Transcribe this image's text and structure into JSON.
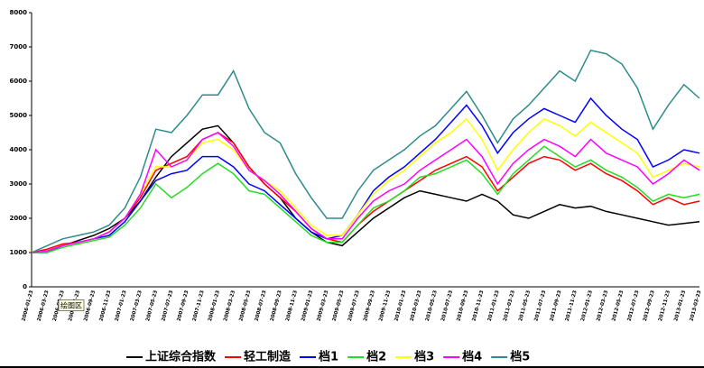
{
  "chart_data": {
    "type": "line",
    "annotation": "绘图区",
    "categories": [
      "2006-01-23",
      "2006-03-23",
      "2006-05-23",
      "2006-07-23",
      "2006-09-23",
      "2006-11-23",
      "2007-01-23",
      "2007-03-23",
      "2007-05-23",
      "2007-07-23",
      "2007-09-23",
      "2007-11-23",
      "2008-01-23",
      "2008-03-23",
      "2008-05-23",
      "2008-07-23",
      "2008-09-23",
      "2008-11-23",
      "2009-01-23",
      "2009-03-23",
      "2009-05-23",
      "2009-07-23",
      "2009-09-23",
      "2009-11-23",
      "2010-01-23",
      "2010-03-23",
      "2010-05-23",
      "2010-07-23",
      "2010-09-23",
      "2010-11-23",
      "2011-01-23",
      "2011-03-23",
      "2011-05-23",
      "2011-07-23",
      "2011-09-23",
      "2011-11-23",
      "2012-01-23",
      "2012-03-23",
      "2012-05-23",
      "2012-07-23",
      "2012-09-23",
      "2012-11-23",
      "2013-01-23",
      "2013-03-23"
    ],
    "series": [
      {
        "name": "上证综合指数",
        "color": "#000000",
        "values": [
          1000,
          1050,
          1200,
          1350,
          1500,
          1700,
          2000,
          2500,
          3200,
          3800,
          4200,
          4600,
          4700,
          4200,
          3500,
          3000,
          2600,
          2000,
          1600,
          1300,
          1200,
          1600,
          2000,
          2300,
          2600,
          2800,
          2700,
          2600,
          2500,
          2700,
          2500,
          2100,
          2000,
          2200,
          2400,
          2300,
          2350,
          2200,
          2100,
          2000,
          1900,
          1800,
          1850,
          1900
        ]
      },
      {
        "name": "轻工制造",
        "color": "#ff0000",
        "values": [
          1000,
          1100,
          1250,
          1300,
          1400,
          1600,
          2000,
          2600,
          3400,
          3600,
          3800,
          4300,
          4500,
          4200,
          3500,
          3000,
          2600,
          2200,
          1700,
          1400,
          1300,
          1800,
          2200,
          2500,
          2800,
          3100,
          3400,
          3600,
          3800,
          3500,
          2800,
          3200,
          3600,
          3800,
          3700,
          3400,
          3600,
          3300,
          3100,
          2800,
          2400,
          2600,
          2400,
          2500
        ]
      },
      {
        "name": "档1",
        "color": "#0000ff",
        "values": [
          1000,
          1000,
          1200,
          1300,
          1400,
          1500,
          1900,
          2500,
          3100,
          3300,
          3400,
          3800,
          3800,
          3500,
          3000,
          2800,
          2400,
          2000,
          1600,
          1400,
          1500,
          2100,
          2800,
          3200,
          3500,
          3900,
          4300,
          4800,
          5300,
          4700,
          3900,
          4500,
          4900,
          5200,
          5000,
          4800,
          5500,
          5000,
          4600,
          4300,
          3500,
          3700,
          4000,
          3900
        ]
      },
      {
        "name": "档2",
        "color": "#22dd22",
        "values": [
          1000,
          1000,
          1150,
          1250,
          1350,
          1450,
          1800,
          2300,
          3000,
          2600,
          2900,
          3300,
          3600,
          3300,
          2800,
          2700,
          2300,
          1900,
          1500,
          1300,
          1300,
          1800,
          2300,
          2500,
          2800,
          3200,
          3300,
          3500,
          3700,
          3300,
          2700,
          3300,
          3700,
          4100,
          3800,
          3500,
          3700,
          3400,
          3200,
          2900,
          2500,
          2700,
          2600,
          2700
        ]
      },
      {
        "name": "档3",
        "color": "#ffff00",
        "values": [
          1000,
          1050,
          1200,
          1300,
          1400,
          1600,
          2000,
          2700,
          3500,
          3500,
          3700,
          4200,
          4300,
          4000,
          3400,
          3100,
          2800,
          2300,
          1800,
          1500,
          1500,
          2100,
          2700,
          3100,
          3400,
          3800,
          4200,
          4500,
          4900,
          4300,
          3400,
          4000,
          4500,
          4900,
          4700,
          4400,
          4800,
          4500,
          4200,
          3900,
          3200,
          3400,
          3600,
          3500
        ]
      },
      {
        "name": "档4",
        "color": "#ff00ff",
        "values": [
          1000,
          1050,
          1200,
          1300,
          1400,
          1600,
          2000,
          2700,
          4000,
          3500,
          3700,
          4300,
          4500,
          4100,
          3400,
          3100,
          2700,
          2200,
          1700,
          1400,
          1400,
          2000,
          2500,
          2800,
          3000,
          3400,
          3700,
          4000,
          4300,
          3800,
          3000,
          3600,
          4000,
          4300,
          4100,
          3800,
          4300,
          3900,
          3700,
          3500,
          3000,
          3300,
          3700,
          3400
        ]
      },
      {
        "name": "档5",
        "color": "#2e8b8b",
        "values": [
          1000,
          1200,
          1400,
          1500,
          1600,
          1800,
          2300,
          3200,
          4600,
          4500,
          5000,
          5600,
          5600,
          6300,
          5200,
          4500,
          4200,
          3300,
          2600,
          2000,
          2000,
          2800,
          3400,
          3700,
          4000,
          4400,
          4700,
          5200,
          5700,
          5000,
          4200,
          4900,
          5300,
          5800,
          6300,
          6000,
          6900,
          6800,
          6500,
          5800,
          4600,
          5300,
          5900,
          5500
        ]
      }
    ],
    "ylim": [
      0,
      8000
    ],
    "yticks": [
      0,
      1000,
      2000,
      3000,
      4000,
      5000,
      6000,
      7000,
      8000
    ],
    "grid": false,
    "legend": "bottom"
  }
}
